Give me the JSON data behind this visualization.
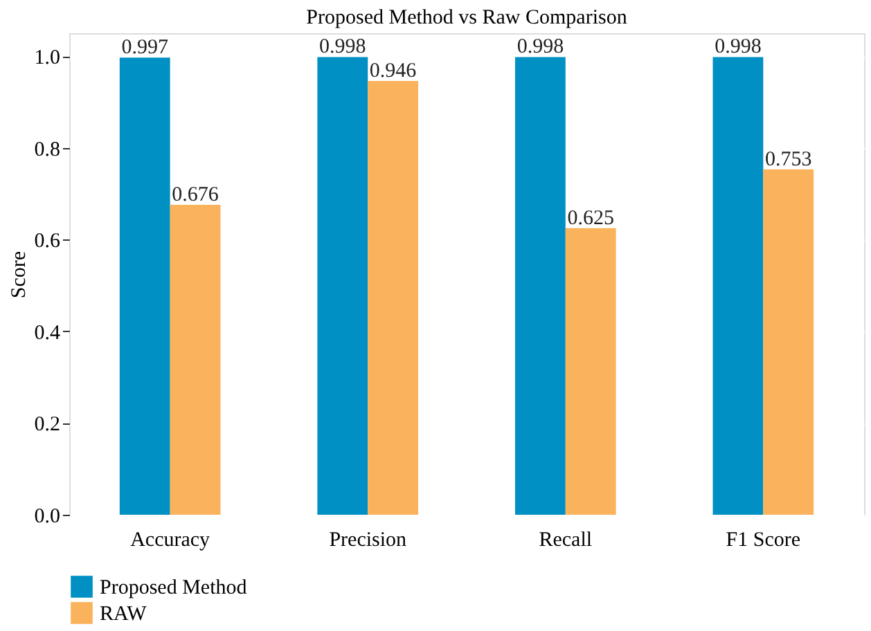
{
  "chart_data": {
    "type": "bar",
    "title": "Proposed Method vs Raw Comparison",
    "ylabel": "Score",
    "categories": [
      "Accuracy",
      "Precision",
      "Recall",
      "F1 Score"
    ],
    "series": [
      {
        "name": "Proposed Method",
        "color": "#0090c3",
        "values": [
          0.997,
          0.998,
          0.998,
          0.998
        ]
      },
      {
        "name": "RAW",
        "color": "#fbb25c",
        "values": [
          0.676,
          0.946,
          0.625,
          0.753
        ]
      }
    ],
    "ylim": [
      0,
      1.05
    ],
    "yticks": [
      {
        "value": 0,
        "label": "0.0"
      },
      {
        "value": 0.2,
        "label": "0.2"
      },
      {
        "value": 0.4,
        "label": "0.4"
      },
      {
        "value": 0.6,
        "label": "0.6"
      },
      {
        "value": 0.8,
        "label": "0.8"
      },
      {
        "value": 1,
        "label": "1.0"
      }
    ],
    "grid": "y",
    "legend": "bottom left",
    "data_labels": true
  }
}
